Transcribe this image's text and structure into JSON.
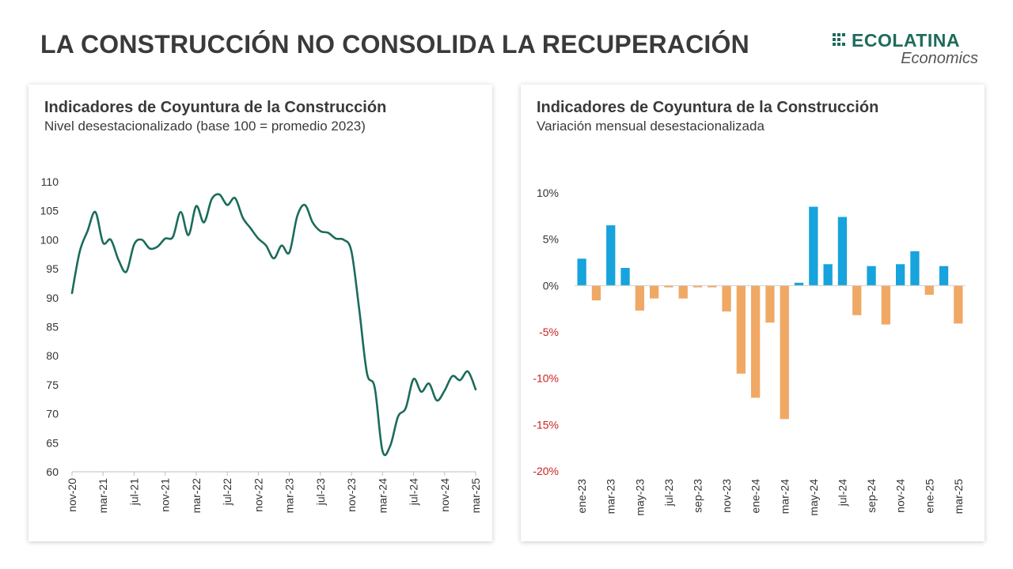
{
  "slide_title": "LA CONSTRUCCIÓN NO CONSOLIDA LA RECUPERACIÓN",
  "logo": {
    "name": "ECOLATINA",
    "subtitle": "Economics",
    "color": "#1f6b5b"
  },
  "chart_data": [
    {
      "type": "line",
      "title": "Indicadores de Coyuntura de la Construcción",
      "subtitle": "Nivel desestacionalizado (base 100 = promedio 2023)",
      "xlabel": "",
      "ylabel": "",
      "ylim": [
        60,
        110
      ],
      "yticks": [
        60,
        65,
        70,
        75,
        80,
        85,
        90,
        95,
        100,
        105,
        110
      ],
      "xtick_labels": [
        "nov-20",
        "mar-21",
        "jul-21",
        "nov-21",
        "mar-22",
        "jul-22",
        "nov-22",
        "mar-23",
        "jul-23",
        "nov-23",
        "mar-24",
        "jul-24",
        "nov-24",
        "mar-25"
      ],
      "xtick_positions": [
        0,
        4,
        8,
        12,
        16,
        20,
        24,
        28,
        32,
        36,
        40,
        44,
        48,
        52
      ],
      "grid": false,
      "color": "#1b6b5c",
      "series": [
        {
          "values": [
            90.8,
            98,
            101.5,
            104.8,
            99.5,
            100,
            96.5,
            94.5,
            99.2,
            100,
            98.5,
            98.8,
            100.2,
            100.5,
            104.8,
            100.8,
            105.8,
            103,
            107,
            107.8,
            106,
            107.2,
            103.8,
            102,
            100.2,
            99,
            96.8,
            99,
            97.8,
            104,
            106,
            103,
            101.5,
            101.2,
            100.2,
            100,
            98,
            88,
            77,
            74.5,
            63.6,
            64.5,
            69.5,
            71,
            76,
            73.8,
            75.2,
            72.3,
            74,
            76.5,
            75.8,
            77.3,
            74.2
          ]
        }
      ]
    },
    {
      "type": "bar",
      "title": "Indicadores de Coyuntura de la Construcción",
      "subtitle": "Variación mensual desestacionalizada",
      "xlabel": "",
      "ylabel": "",
      "ylim": [
        -20,
        10
      ],
      "yticks": [
        -20,
        -15,
        -10,
        -5,
        0,
        5,
        10
      ],
      "ytick_labels": [
        "-20%",
        "-15%",
        "-10%",
        "-5%",
        "0%",
        "5%",
        "10%"
      ],
      "categories": [
        "ene-23",
        "feb-23",
        "mar-23",
        "abr-23",
        "may-23",
        "jun-23",
        "jul-23",
        "ago-23",
        "sep-23",
        "oct-23",
        "nov-23",
        "dic-23",
        "ene-24",
        "feb-24",
        "mar-24",
        "abr-24",
        "may-24",
        "jun-24",
        "jul-24",
        "ago-24",
        "sep-24",
        "oct-24",
        "nov-24",
        "dic-24",
        "ene-25",
        "feb-25",
        "mar-25"
      ],
      "xtick_labels": [
        "ene-23",
        "mar-23",
        "may-23",
        "jul-23",
        "sep-23",
        "nov-23",
        "ene-24",
        "mar-24",
        "may-24",
        "jul-24",
        "sep-24",
        "nov-24",
        "ene-25",
        "mar-25"
      ],
      "xtick_positions": [
        0,
        2,
        4,
        6,
        8,
        10,
        12,
        14,
        16,
        18,
        20,
        22,
        24,
        26
      ],
      "positive_color": "#17a3dc",
      "negative_color": "#f0a865",
      "negative_label_color": "#cc1f1f",
      "grid": false,
      "series": [
        {
          "values": [
            2.9,
            -1.6,
            6.5,
            1.9,
            -2.7,
            -1.4,
            -0.2,
            -1.4,
            -0.2,
            -0.2,
            -2.8,
            -9.5,
            -12.1,
            -4.0,
            -14.4,
            0.3,
            8.5,
            2.3,
            7.4,
            -3.2,
            2.1,
            -4.2,
            2.3,
            3.7,
            -1.0,
            2.1,
            -4.1
          ]
        }
      ]
    }
  ]
}
